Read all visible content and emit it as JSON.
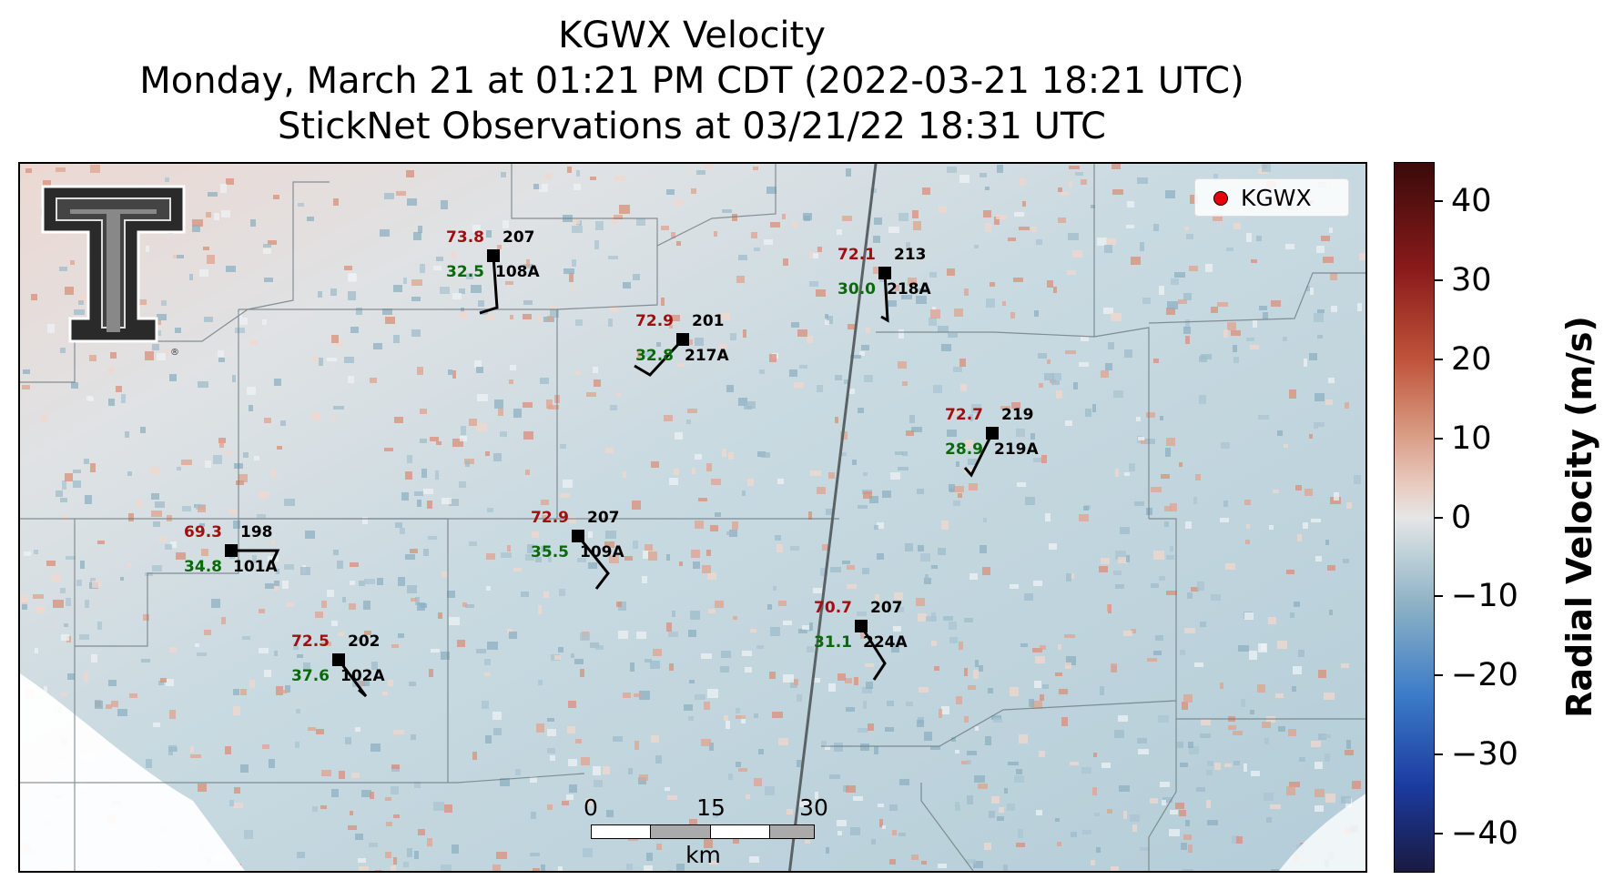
{
  "title": {
    "line1": "KGWX Velocity",
    "line2": "Monday, March 21 at 01:21 PM CDT (2022-03-21 18:21 UTC)",
    "line3": "StickNet Observations at 03/21/22 18:31 UTC"
  },
  "legend": {
    "label": "KGWX",
    "marker_color": "#e8000b"
  },
  "logo": {
    "icon": "texas-tech-double-t-logo",
    "mark": "®"
  },
  "scalebar": {
    "ticks": [
      "0",
      "15",
      "30"
    ],
    "unit": "km"
  },
  "colorbar": {
    "label": "Radial Velocity (m/s)",
    "range": [
      -45,
      45
    ],
    "ticks": [
      "40",
      "30",
      "20",
      "10",
      "0",
      "−10",
      "−20",
      "−30",
      "−40"
    ],
    "tick_values": [
      40,
      30,
      20,
      10,
      0,
      -10,
      -20,
      -30,
      -40
    ],
    "colors": {
      "max": "#3a0a0a",
      "zero": "#e6e6e6",
      "min": "#1a1a40"
    }
  },
  "stations": [
    {
      "id": "108A",
      "top_right": "207",
      "temp": "73.8",
      "dew": "32.5"
    },
    {
      "id": "217A",
      "top_right": "201",
      "temp": "72.9",
      "dew": "32.8"
    },
    {
      "id": "218A",
      "top_right": "213",
      "temp": "72.1",
      "dew": "30.0"
    },
    {
      "id": "219A",
      "top_right": "219",
      "temp": "72.7",
      "dew": "28.9"
    },
    {
      "id": "101A",
      "top_right": "198",
      "temp": "69.3",
      "dew": "34.8"
    },
    {
      "id": "109A",
      "top_right": "207",
      "temp": "72.9",
      "dew": "35.5"
    },
    {
      "id": "224A",
      "top_right": "207",
      "temp": "70.7",
      "dew": "31.1"
    },
    {
      "id": "102A",
      "top_right": "202",
      "temp": "72.5",
      "dew": "37.6"
    }
  ],
  "style": {
    "temp_color": "#a01010",
    "dew_color": "#0a6a0a"
  }
}
